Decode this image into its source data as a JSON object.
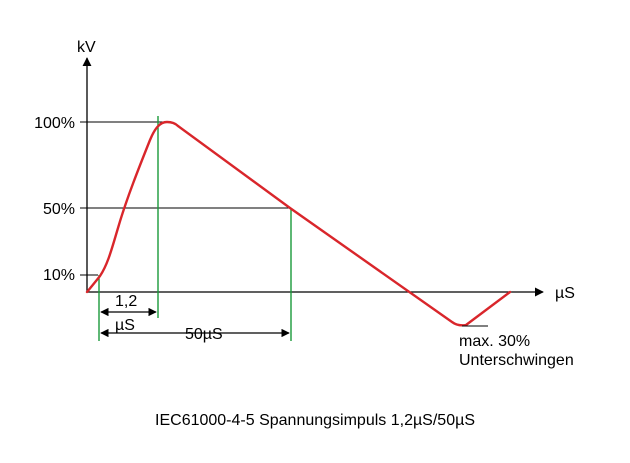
{
  "axes": {
    "y_unit": "kV",
    "x_unit": "µS",
    "y_ticks": [
      "100%",
      "50%",
      "10%"
    ]
  },
  "annotations": {
    "rise_time_line1": "1,2",
    "rise_time_line2": "µS",
    "duration": "50µS",
    "undershoot_line1": "max. 30%",
    "undershoot_line2": "Unterschwingen"
  },
  "caption": "IEC61000-4-5 Spannungsimpuls 1,2µS/50µS",
  "colors": {
    "pulse": "#d9262b",
    "markers": "#1a9a3a",
    "axes": "#000000"
  }
}
